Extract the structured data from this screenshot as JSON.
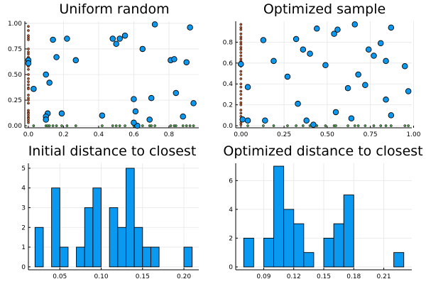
{
  "chart_data": [
    {
      "type": "scatter",
      "title": "Uniform random",
      "xlim": [
        -0.02,
        0.97
      ],
      "ylim": [
        -0.02,
        1.02
      ],
      "xticks": [
        0.0,
        0.2,
        0.4,
        0.6,
        0.8
      ],
      "xticklabels": [
        "0.0",
        "0.2",
        "0.4",
        "0.6",
        "0.8"
      ],
      "yticks": [
        0.0,
        0.25,
        0.5,
        0.75,
        1.0
      ],
      "yticklabels": [
        "0.00",
        "0.25",
        "0.50",
        "0.75",
        "1.00"
      ],
      "grid": true,
      "legend": false,
      "series": [
        {
          "kind": "points",
          "color": "#0a99f0",
          "x": [
            0.0,
            0.0,
            0.03,
            0.1,
            0.12,
            0.14,
            0.16,
            0.22,
            0.27,
            0.48,
            0.52,
            0.55,
            0.42,
            0.5,
            0.6,
            0.61,
            0.72,
            0.65,
            0.62,
            0.92,
            0.94,
            0.81,
            0.83,
            0.9,
            0.88,
            0.84,
            0.11,
            0.1,
            0.19,
            0.1,
            0.69,
            0.7,
            0.6
          ],
          "y": [
            0.64,
            0.61,
            0.36,
            0.5,
            0.42,
            0.84,
            0.67,
            0.85,
            0.64,
            0.85,
            0.85,
            0.88,
            0.1,
            0.8,
            0.26,
            0.14,
            0.99,
            0.75,
            0.0,
            0.96,
            0.22,
            0.64,
            0.65,
            0.62,
            0.09,
            0.32,
            0.12,
            0.09,
            0.12,
            0.06,
            0.06,
            0.27,
            0.03
          ]
        },
        {
          "kind": "y-marginal",
          "color": "#b5542c",
          "x": 0.0,
          "y": [
            0.97,
            0.93,
            0.88,
            0.86,
            0.84,
            0.75,
            0.72,
            0.7,
            0.67,
            0.65,
            0.63,
            0.62,
            0.6,
            0.58,
            0.55,
            0.5,
            0.46,
            0.43,
            0.4,
            0.37,
            0.36,
            0.3,
            0.27,
            0.25,
            0.22,
            0.15,
            0.13,
            0.12,
            0.1,
            0.08,
            0.07,
            0.05,
            0.03
          ]
        },
        {
          "kind": "x-marginal",
          "color": "#4f9a4c",
          "y": 0.0,
          "x": [
            0.03,
            0.1,
            0.11,
            0.12,
            0.14,
            0.16,
            0.19,
            0.22,
            0.27,
            0.42,
            0.48,
            0.5,
            0.52,
            0.55,
            0.6,
            0.61,
            0.62,
            0.65,
            0.69,
            0.7,
            0.72,
            0.81,
            0.83,
            0.84,
            0.88,
            0.9,
            0.92,
            0.94
          ]
        }
      ]
    },
    {
      "type": "scatter",
      "title": "Optimized sample",
      "xlim": [
        -0.03,
        0.99
      ],
      "ylim": [
        -0.02,
        1.0
      ],
      "xticks": [
        0.0,
        0.25,
        0.5,
        0.75,
        1.0
      ],
      "xticklabels": [
        "0.00",
        "0.25",
        "0.50",
        "0.75",
        "1.00"
      ],
      "yticks": [
        0.0,
        0.2,
        0.4,
        0.6,
        0.8
      ],
      "yticklabels": [
        "0.0",
        "0.2",
        "0.4",
        "0.6",
        "0.8"
      ],
      "grid": true,
      "legend": false,
      "series": [
        {
          "kind": "points",
          "color": "#0a99f0",
          "x": [
            0.0,
            0.01,
            0.04,
            0.13,
            0.19,
            0.27,
            0.32,
            0.36,
            0.4,
            0.44,
            0.49,
            0.54,
            0.55,
            0.62,
            0.66,
            0.68,
            0.72,
            0.77,
            0.81,
            0.84,
            0.87,
            0.95,
            0.97,
            0.04,
            0.14,
            0.33,
            0.38,
            0.64,
            0.84,
            0.87,
            0.74,
            0.56,
            0.42
          ],
          "y": [
            0.59,
            0.06,
            0.37,
            0.82,
            0.62,
            0.47,
            0.83,
            0.73,
            0.69,
            0.93,
            0.58,
            0.88,
            0.13,
            0.36,
            0.97,
            0.49,
            0.39,
            0.67,
            0.79,
            0.62,
            0.94,
            0.57,
            0.33,
            0.05,
            0.05,
            0.21,
            0.05,
            0.07,
            0.25,
            0.1,
            0.73,
            0.92,
            0.01
          ]
        },
        {
          "kind": "y-marginal",
          "color": "#b5542c",
          "x": 0.0,
          "y": [
            0.97,
            0.94,
            0.92,
            0.88,
            0.85,
            0.83,
            0.8,
            0.78,
            0.75,
            0.73,
            0.7,
            0.67,
            0.64,
            0.62,
            0.6,
            0.57,
            0.52,
            0.49,
            0.45,
            0.4,
            0.37,
            0.33,
            0.3,
            0.26,
            0.22,
            0.2,
            0.15,
            0.12,
            0.09,
            0.06,
            0.03,
            0.01
          ]
        },
        {
          "kind": "x-marginal",
          "color": "#4f9a4c",
          "y": 0.0,
          "x": [
            0.04,
            0.13,
            0.19,
            0.27,
            0.32,
            0.36,
            0.4,
            0.44,
            0.49,
            0.54,
            0.55,
            0.62,
            0.66,
            0.68,
            0.72,
            0.77,
            0.81,
            0.84,
            0.87,
            0.95,
            0.97
          ]
        }
      ]
    },
    {
      "type": "bar",
      "title": "Initial distance to closest",
      "bin_width": 0.01,
      "bin_starts": [
        0.02,
        0.03,
        0.04,
        0.05,
        0.06,
        0.07,
        0.08,
        0.09,
        0.1,
        0.11,
        0.12,
        0.13,
        0.14,
        0.15,
        0.16,
        0.17,
        0.18,
        0.19,
        0.2
      ],
      "counts": [
        2,
        0,
        4,
        1,
        0,
        1,
        3,
        4,
        0,
        3,
        2,
        5,
        2,
        1,
        1,
        0,
        0,
        0,
        1
      ],
      "xlim": [
        0.012,
        0.218
      ],
      "ylim": [
        -0.15,
        5.25
      ],
      "xticks": [
        0.05,
        0.1,
        0.15,
        0.2
      ],
      "xticklabels": [
        "0.05",
        "0.10",
        "0.15",
        "0.20"
      ],
      "yticks": [
        0,
        1,
        2,
        3,
        4,
        5
      ],
      "yticklabels": [
        "0",
        "1",
        "2",
        "3",
        "4",
        "5"
      ],
      "grid": true,
      "legend": false
    },
    {
      "type": "bar",
      "title": "Optimized distance to closest",
      "bin_width": 0.01,
      "bin_starts": [
        0.07,
        0.08,
        0.09,
        0.1,
        0.11,
        0.12,
        0.13,
        0.14,
        0.15,
        0.16,
        0.17,
        0.18,
        0.19,
        0.2,
        0.21,
        0.22
      ],
      "counts": [
        2,
        0,
        2,
        7,
        4,
        3,
        1,
        0,
        2,
        3,
        5,
        0,
        0,
        0,
        0,
        1
      ],
      "xlim": [
        0.062,
        0.238
      ],
      "ylim": [
        -0.2,
        7.2
      ],
      "xticks": [
        0.09,
        0.12,
        0.15,
        0.18,
        0.21
      ],
      "xticklabels": [
        "0.09",
        "0.12",
        "0.15",
        "0.18",
        "0.21"
      ],
      "yticks": [
        0,
        2,
        4,
        6
      ],
      "yticklabels": [
        "0",
        "2",
        "4",
        "6"
      ],
      "grid": true,
      "legend": false
    }
  ]
}
